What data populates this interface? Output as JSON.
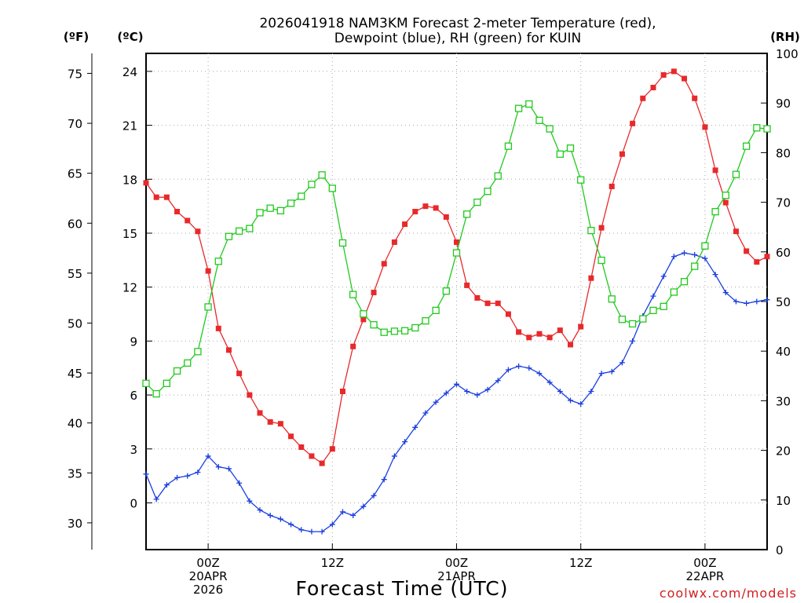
{
  "chart_data": {
    "type": "line",
    "title_line1": "2026041918 NAM3KM Forecast 2-meter Temperature (red),",
    "title_line2": "Dewpoint (blue), RH (green) for KUIN",
    "xlabel": "Forecast Time (UTC)",
    "credit": "coolwx.com/models",
    "unit_f": "(ºF)",
    "unit_c": "(ºC)",
    "unit_rh": "(RH)",
    "x_start_hour": -6,
    "x_end_hour": 54,
    "x_step_hours": 1,
    "xlim_hours": [
      -6,
      54
    ],
    "x_ticks": [
      {
        "hour": 0,
        "line1": "00Z",
        "line2": "20APR",
        "line3": "2026"
      },
      {
        "hour": 12,
        "line1": "12Z",
        "line2": "",
        "line3": ""
      },
      {
        "hour": 24,
        "line1": "00Z",
        "line2": "21APR",
        "line3": ""
      },
      {
        "hour": 36,
        "line1": "12Z",
        "line2": "",
        "line3": ""
      },
      {
        "hour": 48,
        "line1": "00Z",
        "line2": "22APR",
        "line3": ""
      }
    ],
    "y_celsius": {
      "lim": [
        -2.6,
        25
      ],
      "ticks": [
        "0",
        "3",
        "6",
        "9",
        "12",
        "15",
        "18",
        "21",
        "24"
      ]
    },
    "y_fahrenheit": {
      "ticks": [
        "30",
        "35",
        "40",
        "45",
        "50",
        "55",
        "60",
        "65",
        "70",
        "75"
      ]
    },
    "y_rh": {
      "lim": [
        0,
        100
      ],
      "ticks": [
        "0",
        "10",
        "20",
        "30",
        "40",
        "50",
        "60",
        "70",
        "80",
        "90",
        "100"
      ]
    },
    "series": [
      {
        "name": "2-meter Temperature",
        "unit": "C",
        "axis": "celsius",
        "color": "#e8292b",
        "marker": "filled-square",
        "values": [
          17.8,
          17.0,
          17.0,
          16.2,
          15.7,
          15.1,
          12.9,
          9.7,
          8.5,
          7.2,
          6.0,
          5.0,
          4.5,
          4.4,
          3.7,
          3.1,
          2.6,
          2.2,
          3.0,
          6.2,
          8.7,
          10.2,
          11.7,
          13.3,
          14.5,
          15.5,
          16.2,
          16.5,
          16.4,
          15.9,
          14.5,
          12.1,
          11.4,
          11.1,
          11.1,
          10.5,
          9.5,
          9.2,
          9.4,
          9.2,
          9.6,
          8.8,
          9.8,
          12.5,
          15.3,
          17.6,
          19.4,
          21.1,
          22.5,
          23.1,
          23.8,
          24.0,
          23.6,
          22.5,
          20.9,
          18.5,
          16.7,
          15.1,
          14.0,
          13.4,
          13.7
        ]
      },
      {
        "name": "Dewpoint",
        "unit": "C",
        "axis": "celsius",
        "color": "#1a3ee0",
        "marker": "plus",
        "values": [
          1.6,
          0.2,
          1.0,
          1.4,
          1.5,
          1.7,
          2.6,
          2.0,
          1.9,
          1.1,
          0.1,
          -0.4,
          -0.7,
          -0.9,
          -1.2,
          -1.5,
          -1.6,
          -1.6,
          -1.2,
          -0.5,
          -0.7,
          -0.2,
          0.4,
          1.3,
          2.6,
          3.4,
          4.2,
          5.0,
          5.6,
          6.1,
          6.6,
          6.2,
          6.0,
          6.3,
          6.8,
          7.4,
          7.6,
          7.5,
          7.2,
          6.7,
          6.2,
          5.7,
          5.5,
          6.2,
          7.2,
          7.3,
          7.8,
          9.0,
          10.4,
          11.5,
          12.6,
          13.7,
          13.9,
          13.8,
          13.6,
          12.7,
          11.7,
          11.2,
          11.1,
          11.2,
          11.3
        ]
      },
      {
        "name": "RH",
        "unit": "%",
        "axis": "rh",
        "color": "#21c91e",
        "marker": "open-square",
        "values": [
          33.5,
          31.4,
          33.5,
          36.0,
          37.6,
          39.9,
          48.9,
          58.1,
          63.1,
          64.2,
          64.7,
          67.9,
          68.8,
          68.3,
          69.8,
          71.2,
          73.6,
          75.5,
          72.8,
          61.8,
          51.4,
          47.5,
          45.3,
          43.8,
          44.0,
          44.1,
          44.7,
          46.1,
          48.2,
          52.1,
          59.8,
          67.6,
          70.0,
          72.2,
          75.3,
          81.3,
          88.9,
          89.8,
          86.5,
          84.8,
          79.7,
          80.9,
          74.5,
          64.3,
          58.3,
          50.5,
          46.4,
          45.5,
          46.5,
          48.2,
          49.0,
          51.9,
          54.0,
          57.1,
          61.2,
          68.1,
          71.4,
          75.6,
          81.3,
          85.0,
          84.8
        ]
      }
    ]
  }
}
